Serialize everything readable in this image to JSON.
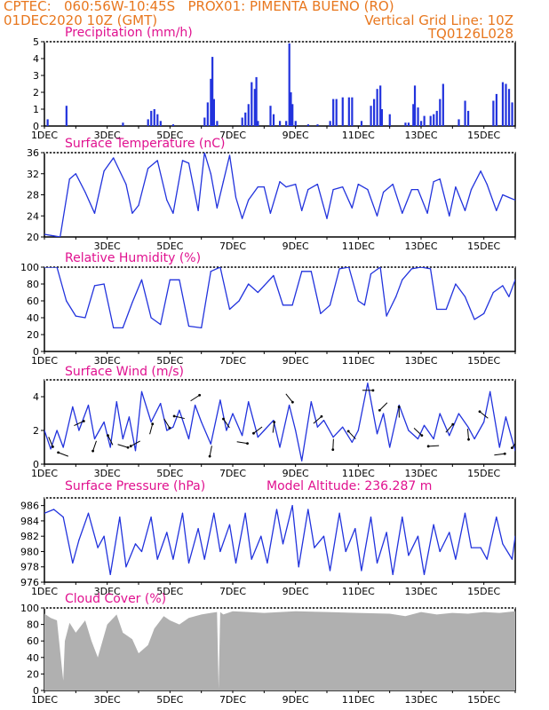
{
  "header": {
    "line1": "CPTEC:   060:56W-10:45S   PROX01: PIMENTA BUENO (RO)",
    "line2_left": "01DEC2020 10Z (GMT)",
    "line2_right": "Vertical Grid Line: 10Z",
    "line3_right": "TQ0126L028"
  },
  "colors": {
    "header": "#e8771e",
    "title": "#e0118f",
    "series": "#2233dd",
    "cloud": "#b0b0b0"
  },
  "chart_data": [
    {
      "id": "precip",
      "type": "bar",
      "title": "Precipitation (mm/h)",
      "ylim": [
        0,
        5
      ],
      "yticks": [
        0,
        1,
        2,
        3,
        4,
        5
      ],
      "x_tick_labels": [
        "1DEC",
        "3DEC",
        "5DEC",
        "7DEC",
        "9DEC",
        "11DEC",
        "13DEC",
        "15DEC"
      ],
      "x_tick_days": [
        1,
        3,
        5,
        7,
        9,
        11,
        13,
        15
      ],
      "xlim_days": [
        1,
        16
      ],
      "bars_day_value": [
        [
          1.1,
          0.4
        ],
        [
          1.7,
          1.2
        ],
        [
          3.5,
          0.2
        ],
        [
          4.3,
          0.4
        ],
        [
          4.4,
          0.9
        ],
        [
          4.5,
          1.0
        ],
        [
          4.6,
          0.7
        ],
        [
          4.7,
          0.3
        ],
        [
          5.1,
          0.1
        ],
        [
          6.1,
          0.5
        ],
        [
          6.2,
          1.4
        ],
        [
          6.3,
          2.8
        ],
        [
          6.35,
          4.1
        ],
        [
          6.4,
          1.6
        ],
        [
          6.5,
          0.3
        ],
        [
          7.3,
          0.5
        ],
        [
          7.4,
          0.8
        ],
        [
          7.5,
          1.3
        ],
        [
          7.6,
          2.6
        ],
        [
          7.7,
          2.2
        ],
        [
          7.75,
          2.9
        ],
        [
          7.8,
          0.3
        ],
        [
          8.2,
          1.2
        ],
        [
          8.3,
          0.7
        ],
        [
          8.5,
          0.3
        ],
        [
          8.7,
          0.3
        ],
        [
          8.8,
          4.9
        ],
        [
          8.85,
          2.0
        ],
        [
          8.9,
          1.3
        ],
        [
          9.0,
          0.3
        ],
        [
          9.4,
          0.1
        ],
        [
          9.7,
          0.1
        ],
        [
          10.1,
          0.3
        ],
        [
          10.2,
          1.6
        ],
        [
          10.3,
          1.6
        ],
        [
          10.5,
          1.7
        ],
        [
          10.7,
          1.7
        ],
        [
          10.8,
          1.7
        ],
        [
          11.1,
          0.3
        ],
        [
          11.4,
          1.2
        ],
        [
          11.5,
          1.6
        ],
        [
          11.6,
          2.2
        ],
        [
          11.7,
          2.4
        ],
        [
          11.75,
          1.0
        ],
        [
          12.0,
          0.7
        ],
        [
          12.5,
          0.2
        ],
        [
          12.6,
          0.2
        ],
        [
          12.75,
          1.3
        ],
        [
          12.8,
          2.4
        ],
        [
          12.9,
          1.1
        ],
        [
          13.0,
          0.3
        ],
        [
          13.1,
          0.6
        ],
        [
          13.3,
          0.6
        ],
        [
          13.4,
          0.7
        ],
        [
          13.5,
          0.9
        ],
        [
          13.6,
          1.6
        ],
        [
          13.7,
          2.5
        ],
        [
          14.2,
          0.4
        ],
        [
          14.4,
          1.5
        ],
        [
          14.5,
          0.9
        ],
        [
          15.3,
          1.5
        ],
        [
          15.4,
          1.9
        ],
        [
          15.6,
          2.6
        ],
        [
          15.7,
          2.5
        ],
        [
          15.8,
          2.2
        ],
        [
          15.9,
          1.4
        ]
      ]
    },
    {
      "id": "temp",
      "type": "line",
      "title": "Surface Temperature (nC)",
      "ylim": [
        20,
        36
      ],
      "yticks": [
        20,
        24,
        28,
        32,
        36
      ],
      "x_tick_labels": [
        "3DEC",
        "5DEC",
        "7DEC",
        "9DEC",
        "11DEC",
        "13DEC",
        "15DEC"
      ],
      "x_tick_days": [
        3,
        5,
        7,
        9,
        11,
        13,
        15
      ],
      "xlim_days": [
        1,
        16
      ],
      "x": [
        1,
        1.3,
        1.5,
        1.8,
        2.0,
        2.3,
        2.6,
        2.9,
        3.2,
        3.6,
        3.8,
        4.0,
        4.3,
        4.6,
        4.9,
        5.1,
        5.4,
        5.6,
        5.9,
        6.1,
        6.3,
        6.5,
        6.7,
        6.9,
        7.1,
        7.3,
        7.5,
        7.8,
        8.0,
        8.2,
        8.5,
        8.7,
        9.0,
        9.2,
        9.4,
        9.7,
        10.0,
        10.2,
        10.5,
        10.8,
        11.0,
        11.3,
        11.6,
        11.8,
        12.1,
        12.4,
        12.7,
        12.9,
        13.2,
        13.4,
        13.6,
        13.9,
        14.1,
        14.4,
        14.6,
        14.9,
        15.1,
        15.4,
        15.6,
        15.8,
        16.0
      ],
      "values": [
        20.5,
        20.2,
        20.0,
        31.0,
        32.0,
        28.5,
        24.5,
        32.5,
        35.0,
        30.0,
        24.5,
        26.0,
        33.0,
        34.5,
        27.0,
        24.5,
        34.5,
        34.0,
        25.0,
        36.0,
        32.0,
        25.5,
        30.5,
        35.5,
        27.5,
        23.5,
        27.0,
        29.5,
        29.5,
        24.5,
        30.5,
        29.5,
        30.0,
        25.0,
        29.0,
        30.0,
        23.5,
        29.0,
        29.5,
        25.5,
        30.0,
        29.0,
        24.0,
        28.5,
        30.0,
        24.5,
        29.0,
        29.0,
        24.5,
        30.5,
        31.0,
        24.0,
        29.5,
        25.0,
        29.0,
        32.5,
        30.0,
        25.0,
        28.0,
        27.5,
        27.0
      ]
    },
    {
      "id": "rh",
      "type": "line",
      "title": "Relative Humidity (%)",
      "ylim": [
        0,
        100
      ],
      "yticks": [
        0,
        20,
        40,
        60,
        80,
        100
      ],
      "x_tick_labels": [
        "1DEC",
        "3DEC",
        "5DEC",
        "7DEC",
        "9DEC",
        "11DEC",
        "13DEC",
        "15DEC"
      ],
      "x_tick_days": [
        1,
        3,
        5,
        7,
        9,
        11,
        13,
        15
      ],
      "xlim_days": [
        1,
        16
      ],
      "x": [
        1,
        1.4,
        1.7,
        2.0,
        2.3,
        2.6,
        2.9,
        3.2,
        3.5,
        3.8,
        4.1,
        4.4,
        4.7,
        5.0,
        5.3,
        5.6,
        6.0,
        6.3,
        6.6,
        6.9,
        7.2,
        7.5,
        7.8,
        8.0,
        8.3,
        8.6,
        8.9,
        9.2,
        9.5,
        9.8,
        10.1,
        10.4,
        10.7,
        11.0,
        11.2,
        11.4,
        11.7,
        11.9,
        12.2,
        12.4,
        12.7,
        13.0,
        13.3,
        13.5,
        13.8,
        14.1,
        14.4,
        14.7,
        15.0,
        15.3,
        15.6,
        15.8,
        16.0
      ],
      "values": [
        100,
        100,
        60,
        42,
        40,
        78,
        80,
        28,
        28,
        58,
        85,
        40,
        32,
        85,
        85,
        30,
        28,
        95,
        100,
        50,
        60,
        80,
        70,
        78,
        90,
        55,
        55,
        95,
        95,
        45,
        55,
        98,
        100,
        60,
        55,
        92,
        100,
        42,
        65,
        85,
        98,
        100,
        98,
        50,
        50,
        80,
        65,
        38,
        45,
        70,
        78,
        65,
        85
      ]
    },
    {
      "id": "wind",
      "type": "line",
      "title": "Surface Wind (m/s)",
      "ylim": [
        0,
        5
      ],
      "yticks": [
        0,
        2,
        4
      ],
      "x_tick_labels": [
        "1DEC",
        "3DEC",
        "5DEC",
        "7DEC",
        "9DEC",
        "11DEC",
        "13DEC",
        "15DEC"
      ],
      "x_tick_days": [
        1,
        3,
        5,
        7,
        9,
        11,
        13,
        15
      ],
      "xlim_days": [
        1,
        16
      ],
      "x": [
        1,
        1.2,
        1.4,
        1.6,
        1.9,
        2.1,
        2.4,
        2.6,
        2.9,
        3.1,
        3.3,
        3.5,
        3.7,
        3.9,
        4.1,
        4.4,
        4.7,
        4.9,
        5.1,
        5.3,
        5.6,
        5.8,
        6.0,
        6.3,
        6.6,
        6.8,
        7.0,
        7.3,
        7.5,
        7.8,
        8.0,
        8.3,
        8.5,
        8.8,
        9.0,
        9.2,
        9.5,
        9.7,
        9.9,
        10.2,
        10.5,
        10.8,
        11.0,
        11.3,
        11.6,
        11.8,
        12.0,
        12.3,
        12.6,
        12.9,
        13.1,
        13.4,
        13.6,
        13.9,
        14.2,
        14.5,
        14.7,
        15.0,
        15.2,
        15.5,
        15.7,
        16.0
      ],
      "values": [
        2.0,
        0.9,
        2.0,
        1.0,
        3.4,
        2.0,
        3.5,
        1.5,
        2.5,
        1.0,
        3.7,
        1.5,
        2.8,
        0.8,
        4.3,
        2.5,
        3.6,
        2.0,
        2.2,
        3.2,
        1.5,
        3.5,
        2.5,
        1.2,
        3.8,
        2.0,
        3.0,
        1.7,
        3.7,
        1.6,
        2.0,
        2.6,
        1.0,
        3.5,
        2.0,
        0.2,
        3.7,
        2.2,
        2.6,
        1.6,
        2.2,
        1.3,
        2.0,
        4.8,
        1.8,
        3.0,
        1.0,
        3.5,
        2.0,
        1.5,
        2.3,
        1.5,
        3.0,
        1.7,
        3.0,
        2.2,
        1.5,
        2.5,
        4.3,
        1.0,
        2.8,
        0.8
      ]
    },
    {
      "id": "pressure",
      "type": "line",
      "title": "Surface Pressure (hPa)",
      "subtitle": "Model Altitude: 236.287 m",
      "ylim": [
        976,
        987
      ],
      "yticks": [
        976,
        978,
        980,
        982,
        984,
        986
      ],
      "x_tick_labels": [
        "1DEC",
        "3DEC",
        "5DEC",
        "7DEC",
        "9DEC",
        "11DEC",
        "13DEC",
        "15DEC"
      ],
      "x_tick_days": [
        1,
        3,
        5,
        7,
        9,
        11,
        13,
        15
      ],
      "xlim_days": [
        1,
        16
      ],
      "x": [
        1,
        1.3,
        1.6,
        1.9,
        2.1,
        2.4,
        2.7,
        2.9,
        3.1,
        3.4,
        3.6,
        3.9,
        4.1,
        4.4,
        4.6,
        4.9,
        5.1,
        5.4,
        5.6,
        5.9,
        6.1,
        6.4,
        6.6,
        6.9,
        7.1,
        7.4,
        7.6,
        7.9,
        8.1,
        8.4,
        8.6,
        8.9,
        9.1,
        9.4,
        9.6,
        9.9,
        10.1,
        10.4,
        10.6,
        10.9,
        11.1,
        11.4,
        11.6,
        11.9,
        12.1,
        12.4,
        12.6,
        12.9,
        13.1,
        13.4,
        13.6,
        13.9,
        14.1,
        14.4,
        14.6,
        14.9,
        15.1,
        15.4,
        15.6,
        15.9,
        16.0
      ],
      "values": [
        985.0,
        985.5,
        984.5,
        978.5,
        981.5,
        985.0,
        980.5,
        982.0,
        977.0,
        984.5,
        978.0,
        981.0,
        980.0,
        984.5,
        979.0,
        982.5,
        979.0,
        985.0,
        978.5,
        983.0,
        979.0,
        985.0,
        980.0,
        983.5,
        978.5,
        985.0,
        979.0,
        982.0,
        978.5,
        985.5,
        981.0,
        986.0,
        978.0,
        985.5,
        980.5,
        982.0,
        977.5,
        985.0,
        980.0,
        983.0,
        977.5,
        984.5,
        978.5,
        982.5,
        977.0,
        984.5,
        979.5,
        982.0,
        977.0,
        983.5,
        980.0,
        982.5,
        979.0,
        985.0,
        980.5,
        980.5,
        979.0,
        984.5,
        981.0,
        979.0,
        982.0
      ]
    },
    {
      "id": "cloud",
      "type": "area",
      "title": "Cloud Cover (%)",
      "ylim": [
        0,
        100
      ],
      "yticks": [
        0,
        20,
        40,
        60,
        80,
        100
      ],
      "x_tick_labels": [
        "1DEC",
        "3DEC",
        "5DEC",
        "7DEC",
        "9DEC",
        "11DEC",
        "13DEC",
        "15DEC"
      ],
      "x_tick_days": [
        1,
        3,
        5,
        7,
        9,
        11,
        13,
        15
      ],
      "xlim_days": [
        1,
        16
      ],
      "x": [
        1,
        1.2,
        1.4,
        1.55,
        1.6,
        1.65,
        1.8,
        2.0,
        2.3,
        2.5,
        2.7,
        3.0,
        3.3,
        3.5,
        3.8,
        4.0,
        4.3,
        4.5,
        4.8,
        5.0,
        5.3,
        5.6,
        6.0,
        6.3,
        6.5,
        6.55,
        6.6,
        6.7,
        7.0,
        7.5,
        8.0,
        9.0,
        10.0,
        11.0,
        12.0,
        12.5,
        13.0,
        13.5,
        14.0,
        14.5,
        15.0,
        15.5,
        16.0
      ],
      "values": [
        93,
        88,
        85,
        30,
        12,
        60,
        82,
        70,
        85,
        60,
        40,
        80,
        92,
        70,
        62,
        45,
        55,
        75,
        90,
        85,
        80,
        88,
        92,
        94,
        95,
        2,
        95,
        92,
        96,
        95,
        94,
        96,
        95,
        94,
        93,
        90,
        95,
        92,
        94,
        93,
        95,
        94,
        96
      ]
    }
  ]
}
